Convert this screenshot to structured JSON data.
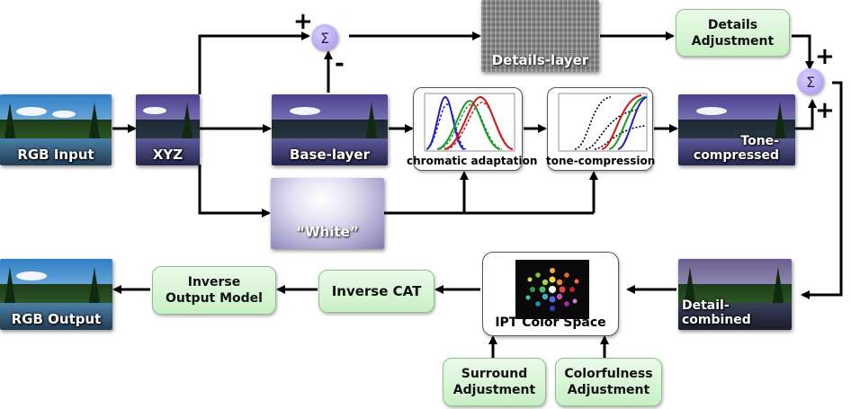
{
  "nodes": {
    "rgb_input": "RGB Input",
    "xyz": "XYZ",
    "base_layer": "Base-layer",
    "details_layer": "Details-layer",
    "details_adjustment": "Details Adjustment",
    "white": "“White”",
    "chromatic_adaptation": "chromatic adaptation",
    "tone_compression": "tone-compression",
    "tone_compressed": "Tone-compressed",
    "detail_combined": "Detail-combined",
    "ipt_color_space": "IPT Color Space",
    "surround_adjustment": "Surround Adjustment",
    "colorfulness_adjustment": "Colorfulness Adjustment",
    "inverse_cat": "Inverse CAT",
    "inverse_output_model": "Inverse Output Model",
    "rgb_output": "RGB Output"
  },
  "operators": {
    "sum_symbol": "Σ",
    "plus": "+",
    "minus": "-"
  },
  "colors": {
    "green_box": "#c9efc6",
    "sum_node": "#a594e6",
    "arrow": "#000000"
  }
}
